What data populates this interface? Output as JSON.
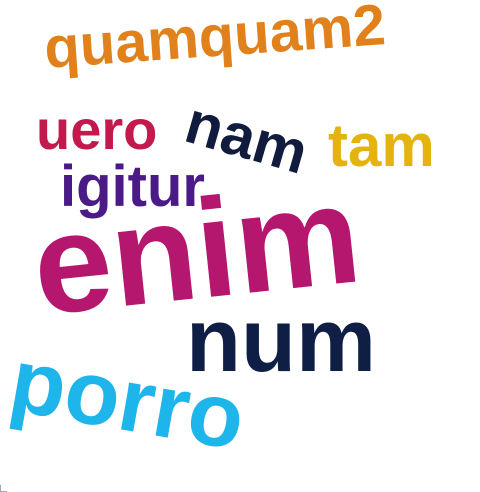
{
  "word_cloud": {
    "words": [
      {
        "text": "quamquam2",
        "color": "#E0811C"
      },
      {
        "text": "uero",
        "color": "#C4194C"
      },
      {
        "text": "nam",
        "color": "#111B3D"
      },
      {
        "text": "tam",
        "color": "#E5B30E"
      },
      {
        "text": "igitur",
        "color": "#4A1A86"
      },
      {
        "text": "enim",
        "color": "#B5176F"
      },
      {
        "text": "num",
        "color": "#0F1E45"
      },
      {
        "text": "porro",
        "color": "#1EB6EA"
      }
    ]
  }
}
